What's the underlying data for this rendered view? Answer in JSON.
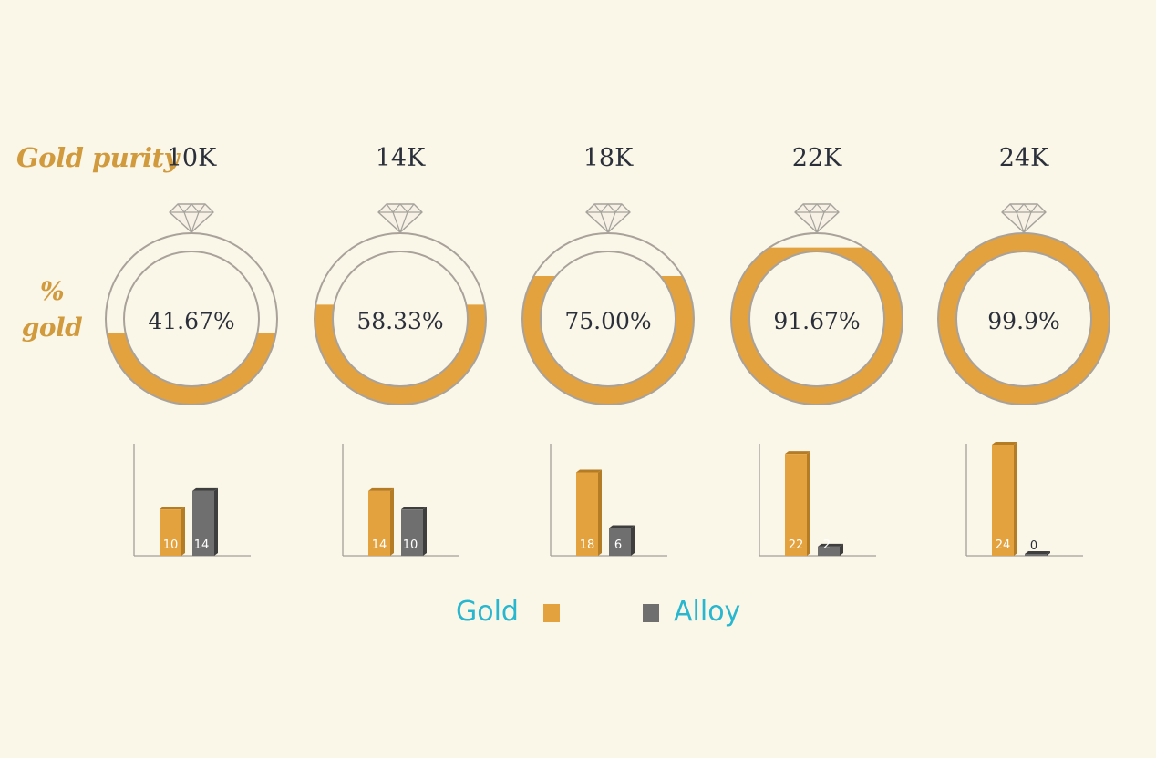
{
  "labels": {
    "purity": "Gold purity",
    "pct_line1": "%",
    "pct_line2": "gold"
  },
  "legend": {
    "gold": "Gold",
    "alloy": "Alloy"
  },
  "colors": {
    "gold": "#e3a23e",
    "alloy": "#6f6f6f",
    "ring_outline": "#a8a29a",
    "text": "#2a2f3a",
    "accent": "#d19a3d",
    "legend": "#28b7cf"
  },
  "icons": {
    "ring_top": "diamond-icon"
  },
  "chart_data": {
    "type": "bar",
    "title": "",
    "categories": [
      "10K",
      "14K",
      "18K",
      "22K",
      "24K"
    ],
    "percent_gold_labels": [
      "41.67%",
      "58.33%",
      "75.00%",
      "91.67%",
      "99.9%"
    ],
    "percent_gold": [
      41.67,
      58.33,
      75.0,
      91.67,
      99.9
    ],
    "series": [
      {
        "name": "Gold",
        "values": [
          10,
          14,
          18,
          22,
          24
        ]
      },
      {
        "name": "Alloy",
        "values": [
          14,
          10,
          6,
          2,
          0
        ]
      }
    ],
    "ylim": [
      0,
      24
    ],
    "legend_position": "bottom-center",
    "grid": false
  }
}
